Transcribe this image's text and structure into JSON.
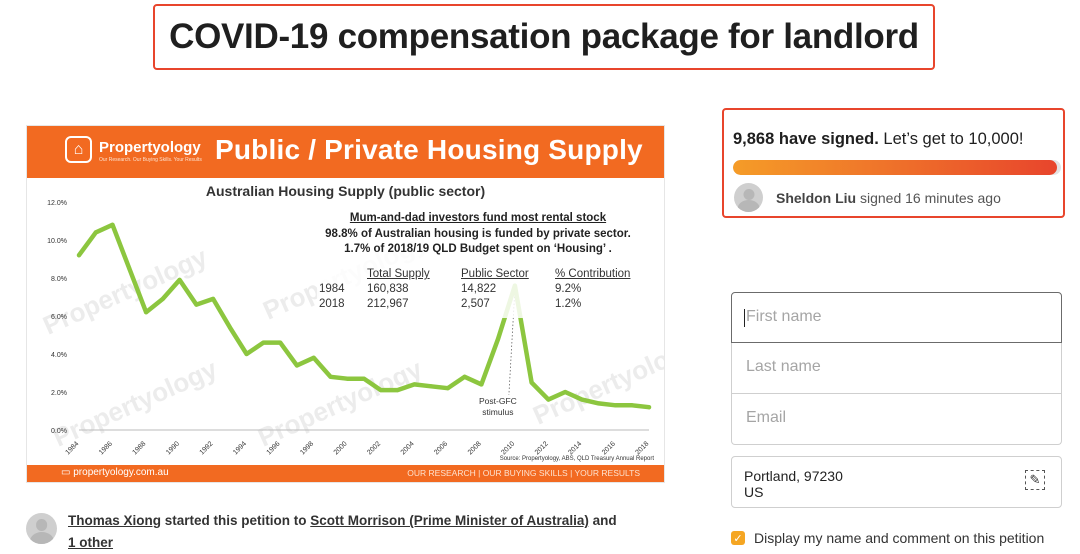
{
  "page_title": "COVID-19 compensation package for landlord",
  "chart_image": {
    "brand": "Propertyology",
    "brand_tagline": "Our Research. Our Buying Skills. Your Results",
    "banner_title": "Public / Private Housing Supply",
    "subtitle": "Australian Housing Supply (public sector)",
    "annotation": {
      "headline": "Mum-and-dad investors fund most rental stock",
      "line2": "98.8% of Australian housing is funded by private sector.",
      "line3": "1.7% of 2018/19 QLD Budget spent on ‘Housing’ .",
      "columns": [
        "Total Supply",
        "Public Sector",
        "% Contribution"
      ],
      "rows": [
        {
          "year": "1984",
          "total": "160,838",
          "public": "14,822",
          "pct": "9.2%"
        },
        {
          "year": "2018",
          "total": "212,967",
          "public": "2,507",
          "pct": "1.2%"
        }
      ]
    },
    "callout": "Post-GFC stimulus",
    "callout_l1": "Post-GFC",
    "callout_l2": "stimulus",
    "watermark": "Propertyology",
    "source": "Source: Propertyology, ABS, QLD Treasury Annual Report",
    "footer_left": "propertyology.com.au",
    "footer_right": "OUR RESEARCH | OUR BUYING SKILLS | YOUR RESULTS",
    "line_color": "#8cc63f"
  },
  "chart_data": {
    "type": "line",
    "title": "Australian Housing Supply (public sector)",
    "xlabel": "",
    "ylabel": "",
    "ylim": [
      0,
      12
    ],
    "y_ticks": [
      "0.0%",
      "2.0%",
      "4.0%",
      "6.0%",
      "8.0%",
      "10.0%",
      "12.0%"
    ],
    "x_ticks": [
      "1984",
      "1986",
      "1988",
      "1990",
      "1992",
      "1994",
      "1996",
      "1998",
      "2000",
      "2002",
      "2004",
      "2006",
      "2008",
      "2010",
      "2012",
      "2014",
      "2016",
      "2018"
    ],
    "x": [
      1984,
      1985,
      1986,
      1987,
      1988,
      1989,
      1990,
      1991,
      1992,
      1993,
      1994,
      1995,
      1996,
      1997,
      1998,
      1999,
      2000,
      2001,
      2002,
      2003,
      2004,
      2005,
      2006,
      2007,
      2008,
      2009,
      2010,
      2011,
      2012,
      2013,
      2014,
      2015,
      2016,
      2017,
      2018
    ],
    "series": [
      {
        "values": [
          9.2,
          10.4,
          10.8,
          8.5,
          6.2,
          6.9,
          7.9,
          6.6,
          6.9,
          5.4,
          4.0,
          4.6,
          4.6,
          3.4,
          3.8,
          2.8,
          2.7,
          2.7,
          2.1,
          2.1,
          2.4,
          2.3,
          2.2,
          2.8,
          2.4,
          4.8,
          7.6,
          2.5,
          1.6,
          2.0,
          1.6,
          1.4,
          1.3,
          1.3,
          1.2
        ]
      }
    ]
  },
  "starter": {
    "author": "Thomas Xiong",
    "middle": " started this petition to ",
    "target": "Scott Morrison (Prime Minister of Australia)",
    "and": " and ",
    "other": "1 other"
  },
  "signatures": {
    "count_text": "9,868 have signed.",
    "goal_text": " Let’s get to 10,000!",
    "progress_fraction": 0.9868,
    "recent_name": "Sheldon Liu",
    "recent_text": " signed 16 minutes ago"
  },
  "form": {
    "first_name_placeholder": "First name",
    "last_name_placeholder": "Last name",
    "email_placeholder": "Email",
    "location_line1": "Portland, 97230",
    "location_line2": "US",
    "display_checkbox_label": "Display my name and comment on this petition",
    "display_checked": true
  }
}
